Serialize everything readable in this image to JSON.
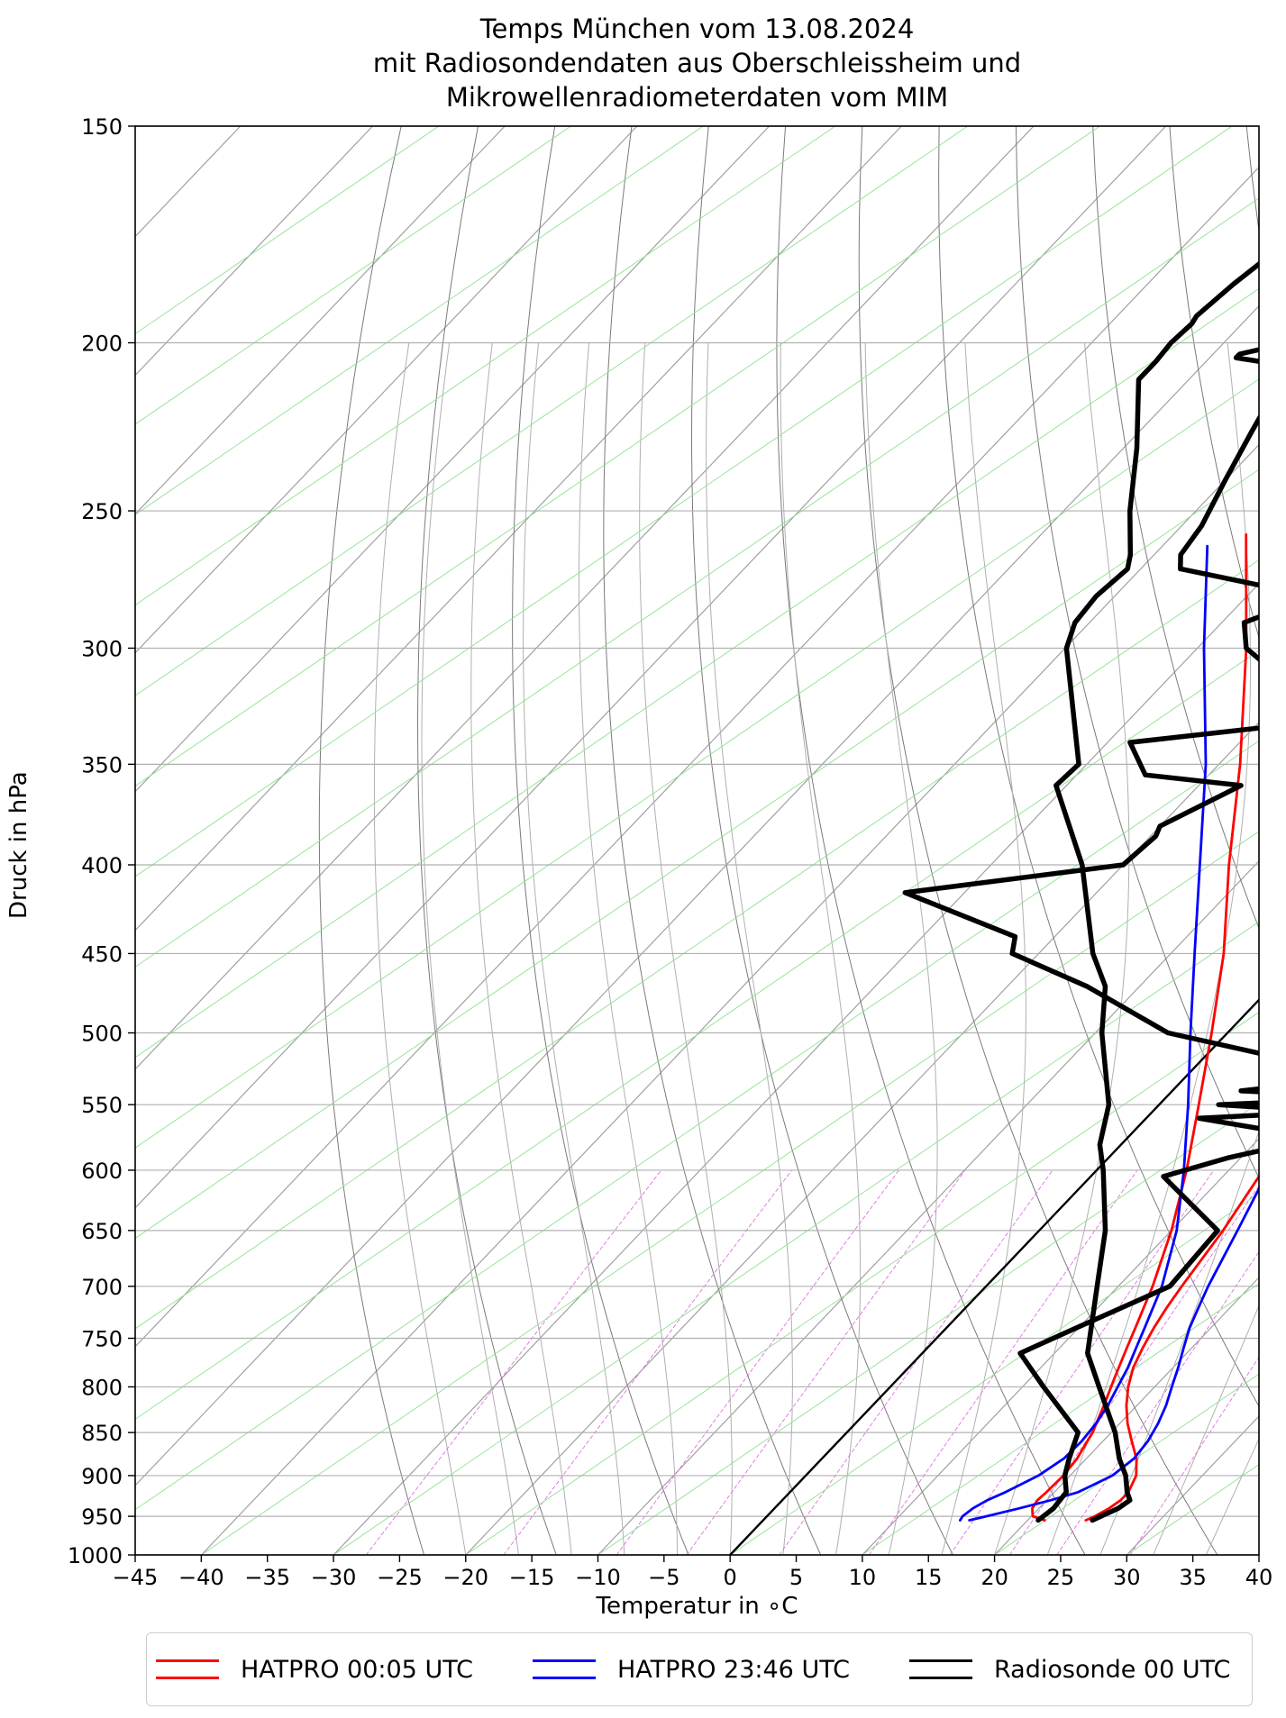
{
  "chart_data": {
    "type": "line",
    "title_lines": [
      "Temps München vom 13.08.2024",
      "mit Radiosondendaten aus Oberschleissheim und",
      "Mikrowellenradiometerdaten vom MIM"
    ],
    "xlabel": "Temperatur in ∘C",
    "ylabel": "Druck in hPa",
    "xlim": [
      -45,
      40
    ],
    "ylim": [
      1000,
      150
    ],
    "y_scale": "log",
    "skew_t": true,
    "grid": true,
    "legend_position": "bottom",
    "x_ticks": [
      "−45",
      "−40",
      "−35",
      "−30",
      "−25",
      "−20",
      "−15",
      "−10",
      "−5",
      "0",
      "5",
      "10",
      "15",
      "20",
      "25",
      "30",
      "35",
      "40"
    ],
    "y_ticks": [
      "150",
      "200",
      "250",
      "300",
      "350",
      "400",
      "450",
      "500",
      "550",
      "600",
      "650",
      "700",
      "750",
      "800",
      "850",
      "900",
      "950",
      "1000"
    ],
    "series": [
      {
        "name": "HATPRO 00:05 UTC",
        "color": "#ff0000",
        "profiles": [
          {
            "p": [
              955,
              950,
              940,
              930,
              920,
              900,
              880,
              850,
              820,
              790,
              760,
              740,
              700,
              650,
              600,
              550,
              500,
              450,
              400,
              350,
              300,
              258
            ],
            "t": [
              21.3,
              20.1,
              19.5,
              19.3,
              19.4,
              19.5,
              19.3,
              18.6,
              17.5,
              16.3,
              15.1,
              14.3,
              12.6,
              10.0,
              6.8,
              3.0,
              -1.2,
              -6.0,
              -12.0,
              -18.4,
              -26.3,
              -34.5
            ]
          },
          {
            "p": [
              955,
              950,
              940,
              930,
              920,
              900,
              880,
              860,
              840,
              820,
              800,
              780,
              760,
              740,
              720,
              700,
              650,
              600,
              550,
              500,
              450,
              400,
              350,
              300,
              258
            ],
            "t": [
              24.4,
              24.8,
              25.3,
              25.6,
              25.6,
              25.0,
              23.8,
              22.2,
              20.6,
              19.2,
              18.0,
              17.0,
              16.3,
              15.7,
              15.2,
              14.8,
              13.9,
              12.6,
              10.5,
              7.6,
              3.6,
              -1.3,
              -8.0,
              -16.9,
              -27.0
            ]
          }
        ]
      },
      {
        "name": "HATPRO 23:46 UTC",
        "color": "#0000ff",
        "profiles": [
          {
            "p": [
              955,
              950,
              940,
              930,
              920,
              900,
              880,
              860,
              840,
              820,
              800,
              780,
              760,
              740,
              700,
              650,
              600,
              550,
              500,
              450,
              400,
              350,
              300,
              262
            ],
            "t": [
              14.9,
              14.8,
              15.0,
              15.5,
              16.3,
              17.6,
              18.3,
              18.4,
              18.2,
              17.8,
              17.2,
              16.6,
              15.8,
              15.0,
              13.3,
              10.4,
              6.6,
              2.2,
              -2.8,
              -8.2,
              -14.2,
              -21.0,
              -29.5,
              -36.6
            ]
          },
          {
            "p": [
              955,
              950,
              940,
              930,
              920,
              900,
              880,
              860,
              840,
              820,
              800,
              780,
              760,
              740,
              720,
              700,
              650,
              600,
              550,
              500,
              450,
              400,
              350,
              300,
              265
            ],
            "t": [
              15.6,
              16.6,
              18.5,
              20.3,
              21.8,
              23.2,
              23.6,
              23.4,
              22.9,
              22.2,
              21.3,
              20.4,
              19.4,
              18.4,
              17.6,
              16.8,
              15.0,
              13.0,
              10.5,
              7.7,
              4.2,
              0.4,
              -5.2,
              -13.9,
              -23.3
            ]
          }
        ]
      },
      {
        "name": "Radiosonde 00 UTC",
        "color": "#000000",
        "profiles": [
          {
            "p": [
              955,
              940,
              920,
              900,
              880,
              850,
              800,
              765,
              740,
              700,
              650,
              605,
              590,
              575,
              560,
              555,
              550,
              545,
              540,
              530,
              500,
              470,
              450,
              440,
              415,
              400,
              385,
              380,
              360,
              355,
              340,
              330,
              300,
              290,
              280,
              270,
              265,
              255,
              240,
              225,
              210,
              205,
              204,
              203,
              195
            ],
            "t": [
              20.8,
              21.1,
              20.9,
              19.6,
              18.7,
              17.5,
              11.6,
              7.4,
              9.8,
              13.9,
              13.5,
              5.5,
              9.1,
              14.3,
              4.0,
              13.3,
              4.5,
              16.0,
              5.2,
              13.5,
              -4.5,
              -14.0,
              -22.0,
              -23.0,
              -34.5,
              -20.0,
              -19.6,
              -20.0,
              -16.8,
              -24.8,
              -28.3,
              -14.7,
              -26.3,
              -28.3,
              -25.0,
              -37.0,
              -38.0,
              -38.5,
              -40.0,
              -41.5,
              -43.0,
              -46.0,
              -48.0,
              -48.0,
              -40.0
            ]
          },
          {
            "p": [
              955,
              940,
              930,
              920,
              900,
              880,
              850,
              800,
              765,
              700,
              650,
              600,
              580,
              550,
              500,
              470,
              450,
              400,
              360,
              350,
              300,
              290,
              280,
              270,
              265,
              250,
              230,
              210,
              205,
              200,
              195,
              193,
              185,
              180,
              160,
              150
            ],
            "t": [
              24.9,
              26.0,
              26.3,
              25.5,
              24.2,
              22.5,
              20.3,
              15.8,
              12.5,
              8.4,
              5.0,
              0.5,
              -1.6,
              -3.8,
              -9.5,
              -12.6,
              -15.9,
              -23.1,
              -30.8,
              -30.6,
              -39.9,
              -41.1,
              -41.4,
              -41.0,
              -41.8,
              -45.0,
              -49.0,
              -53.8,
              -53.8,
              -54.0,
              -53.8,
              -54.0,
              -53.5,
              -53.0,
              -54.0,
              -55.0
            ]
          }
        ]
      }
    ]
  }
}
